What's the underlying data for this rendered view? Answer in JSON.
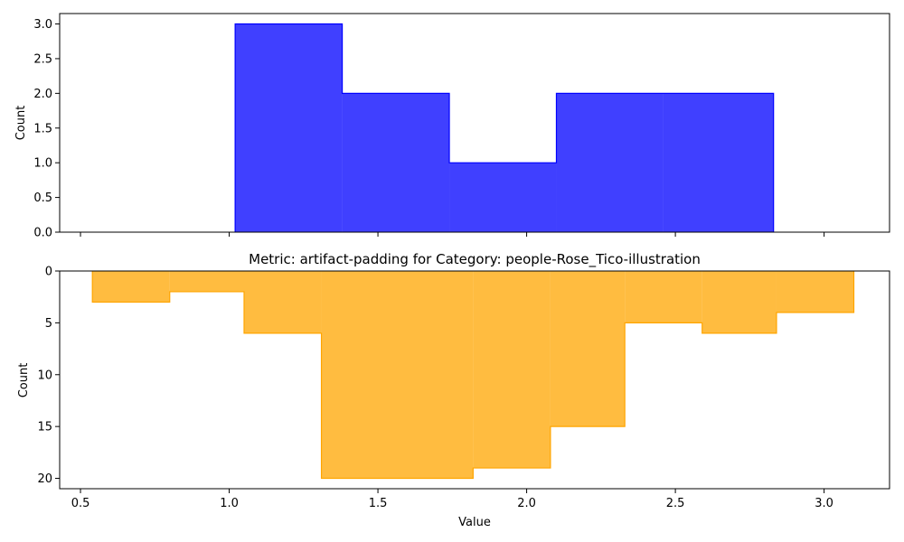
{
  "chart_data": [
    {
      "type": "histogram",
      "title": "",
      "xlabel": "",
      "ylabel": "Count",
      "xlim": [
        0.43,
        3.22
      ],
      "ylim": [
        0,
        3.15
      ],
      "xticks": [
        0.5,
        1.0,
        1.5,
        2.0,
        2.5,
        3.0
      ],
      "xtick_labels_visible": false,
      "yticks": [
        0.0,
        0.5,
        1.0,
        1.5,
        2.0,
        2.5,
        3.0
      ],
      "ytick_labels": [
        "0.0",
        "0.5",
        "1.0",
        "1.5",
        "2.0",
        "2.5",
        "3.0"
      ],
      "color": "#0000ff",
      "bins": [
        {
          "x0": 1.02,
          "x1": 1.38,
          "count": 3
        },
        {
          "x0": 1.38,
          "x1": 1.74,
          "count": 2
        },
        {
          "x0": 1.74,
          "x1": 2.1,
          "count": 1
        },
        {
          "x0": 2.1,
          "x1": 2.46,
          "count": 2
        },
        {
          "x0": 2.46,
          "x1": 2.83,
          "count": 2
        }
      ]
    },
    {
      "type": "histogram",
      "title": "Metric: artifact-padding for Category: people-Rose_Tico-illustration",
      "xlabel": "Value",
      "ylabel": "Count",
      "xlim": [
        0.43,
        3.22
      ],
      "ylim": [
        0,
        21
      ],
      "y_inverted": true,
      "xticks": [
        0.5,
        1.0,
        1.5,
        2.0,
        2.5,
        3.0
      ],
      "xtick_labels": [
        "0.5",
        "1.0",
        "1.5",
        "2.0",
        "2.5",
        "3.0"
      ],
      "yticks": [
        0,
        5,
        10,
        15,
        20
      ],
      "ytick_labels": [
        "0",
        "5",
        "10",
        "15",
        "20"
      ],
      "color": "#ffa500",
      "bins": [
        {
          "x0": 0.54,
          "x1": 0.8,
          "count": 3
        },
        {
          "x0": 0.8,
          "x1": 1.05,
          "count": 2
        },
        {
          "x0": 1.05,
          "x1": 1.31,
          "count": 6
        },
        {
          "x0": 1.31,
          "x1": 1.82,
          "count": 20
        },
        {
          "x0": 1.82,
          "x1": 2.08,
          "count": 19
        },
        {
          "x0": 2.08,
          "x1": 2.33,
          "count": 15
        },
        {
          "x0": 2.33,
          "x1": 2.59,
          "count": 5
        },
        {
          "x0": 2.59,
          "x1": 2.84,
          "count": 6
        },
        {
          "x0": 2.84,
          "x1": 3.1,
          "count": 4
        }
      ]
    }
  ]
}
